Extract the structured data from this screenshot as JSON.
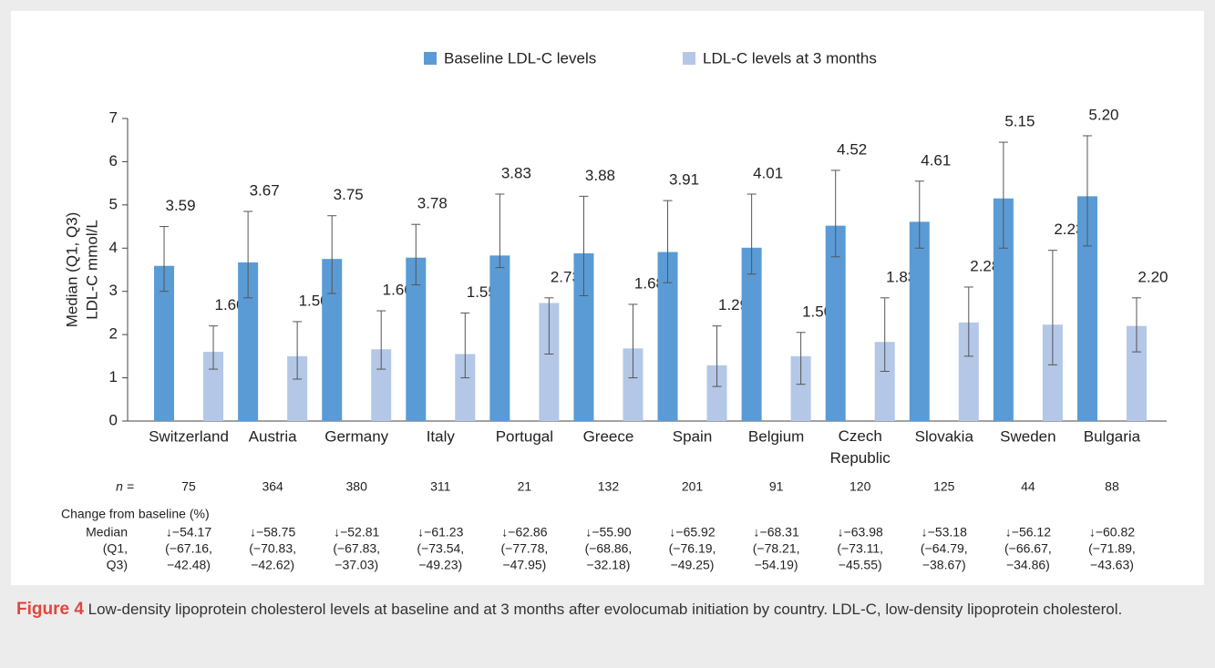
{
  "chart_data": {
    "type": "bar",
    "y_label": [
      "Median (Q1, Q3)",
      "LDL-C mmol/L"
    ],
    "categories": [
      "Switzerland",
      "Austria",
      "Germany",
      "Italy",
      "Portugal",
      "Greece",
      "Spain",
      "Belgium",
      "Czech Republic",
      "Slovakia",
      "Sweden",
      "Bulgaria"
    ],
    "series": [
      {
        "name": "Baseline LDL-C levels",
        "color": "#5b9bd5",
        "values": [
          3.59,
          3.67,
          3.75,
          3.78,
          3.83,
          3.88,
          3.91,
          4.01,
          4.52,
          4.61,
          5.15,
          5.2
        ],
        "value_labels": [
          "3.59",
          "3.67",
          "3.75",
          "3.78",
          "3.83",
          "3.88",
          "3.91",
          "4.01",
          "4.52",
          "4.61",
          "5.15",
          "5.20"
        ],
        "q1": [
          3.0,
          2.85,
          2.95,
          3.15,
          3.55,
          2.9,
          3.2,
          3.4,
          3.8,
          4.0,
          4.0,
          4.05
        ],
        "q3": [
          4.5,
          4.85,
          4.75,
          4.55,
          5.25,
          5.2,
          5.1,
          5.25,
          5.8,
          5.55,
          6.45,
          6.6
        ]
      },
      {
        "name": "LDL-C levels at 3 months",
        "color": "#b4c7e7",
        "values": [
          1.6,
          1.5,
          1.66,
          1.55,
          2.73,
          1.68,
          1.29,
          1.5,
          1.83,
          2.28,
          2.23,
          2.2
        ],
        "value_labels": [
          "1.60",
          "1.50",
          "1.66",
          "1.55",
          "2.73",
          "1.68",
          "1.29",
          "1.50",
          "1.83",
          "2.28",
          "2.23",
          "2.20"
        ],
        "q1": [
          1.2,
          0.97,
          1.2,
          1.0,
          1.55,
          1.0,
          0.8,
          0.85,
          1.15,
          1.5,
          1.3,
          1.6
        ],
        "q3": [
          2.2,
          2.3,
          2.55,
          2.5,
          2.85,
          2.7,
          2.2,
          2.05,
          2.85,
          3.1,
          3.95,
          2.85
        ]
      }
    ],
    "ylim": [
      0,
      7
    ],
    "yticks": [
      0,
      1,
      2,
      3,
      4,
      5,
      6,
      7
    ],
    "grid": false,
    "legend": "top"
  },
  "table": {
    "n_label": "n =",
    "n": [
      75,
      364,
      380,
      311,
      21,
      132,
      201,
      91,
      120,
      125,
      44,
      88
    ],
    "change_title": "Change from baseline (%)",
    "row_labels": [
      "Median",
      "(Q1,",
      "Q3)"
    ],
    "median": [
      "↓−54.17",
      "↓−58.75",
      "↓−52.81",
      "↓−61.23",
      "↓−62.86",
      "↓−55.90",
      "↓−65.92",
      "↓−68.31",
      "↓−63.98",
      "↓−53.18",
      "↓−56.12",
      "↓−60.82"
    ],
    "q1": [
      "(−67.16,",
      "(−70.83,",
      "(−67.83,",
      "(−73.54,",
      "(−77.78,",
      "(−68.86,",
      "(−76.19,",
      "(−78.21,",
      "(−73.11,",
      "(−64.79,",
      "(−66.67,",
      "(−71.89,"
    ],
    "q3": [
      "−42.48)",
      "−42.62)",
      "−37.03)",
      "−49.23)",
      "−47.95)",
      "−32.18)",
      "−49.25)",
      "−54.19)",
      "−45.55)",
      "−38.67)",
      "−34.86)",
      "−43.63)"
    ]
  },
  "caption": {
    "label": "Figure 4",
    "text": "Low-density lipoprotein cholesterol levels at baseline and at 3 months after evolocumab initiation by country. LDL-C, low-density lipoprotein cholesterol."
  }
}
